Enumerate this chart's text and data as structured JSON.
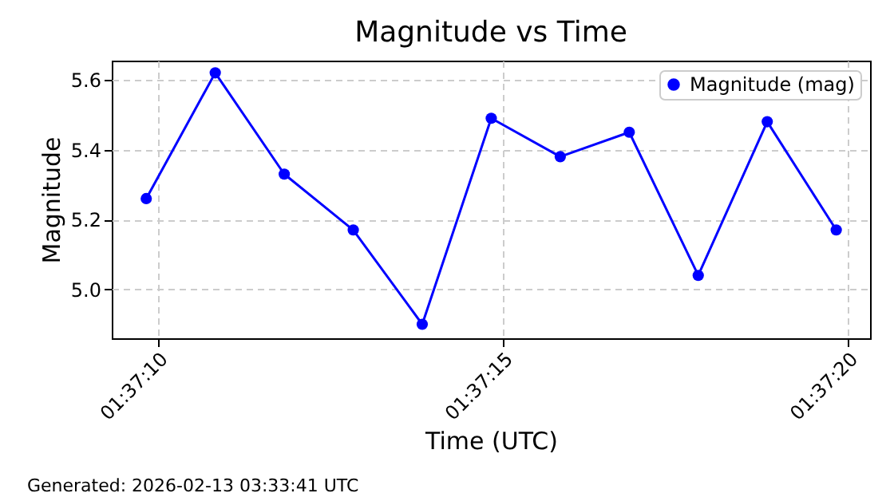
{
  "chart_data": {
    "type": "line",
    "title": "Magnitude vs Time",
    "xlabel": "Time (UTC)",
    "ylabel": "Magnitude",
    "x": [
      1.6193972,
      1.619675,
      1.6199528,
      1.6202306,
      1.6205083,
      1.6207861,
      1.6210639,
      1.6213417,
      1.6216194,
      1.6218972,
      1.622175
    ],
    "series": [
      {
        "name": "Magnitude (mag)",
        "color": "#0000ff",
        "values": [
          5.26,
          5.62,
          5.33,
          5.17,
          4.9,
          5.49,
          5.38,
          5.45,
          5.04,
          5.48,
          5.17
        ]
      }
    ],
    "xlim": [
      1.6192583,
      1.6223111
    ],
    "xticks": [
      {
        "value": 1.6194444,
        "label": "01:37:10"
      },
      {
        "value": 1.6208333,
        "label": "01:37:15"
      },
      {
        "value": 1.6222222,
        "label": "01:37:20"
      }
    ],
    "ylim": [
      4.86,
      5.655
    ],
    "yticks": [
      {
        "value": 5.0,
        "label": "5.0"
      },
      5.2,
      5.4,
      5.6
    ],
    "grid": true,
    "legend": "top right",
    "marker": "circle",
    "line_style": "solid",
    "annotations": [
      "Generated: 2026-02-13 03:33:41 UTC"
    ]
  }
}
